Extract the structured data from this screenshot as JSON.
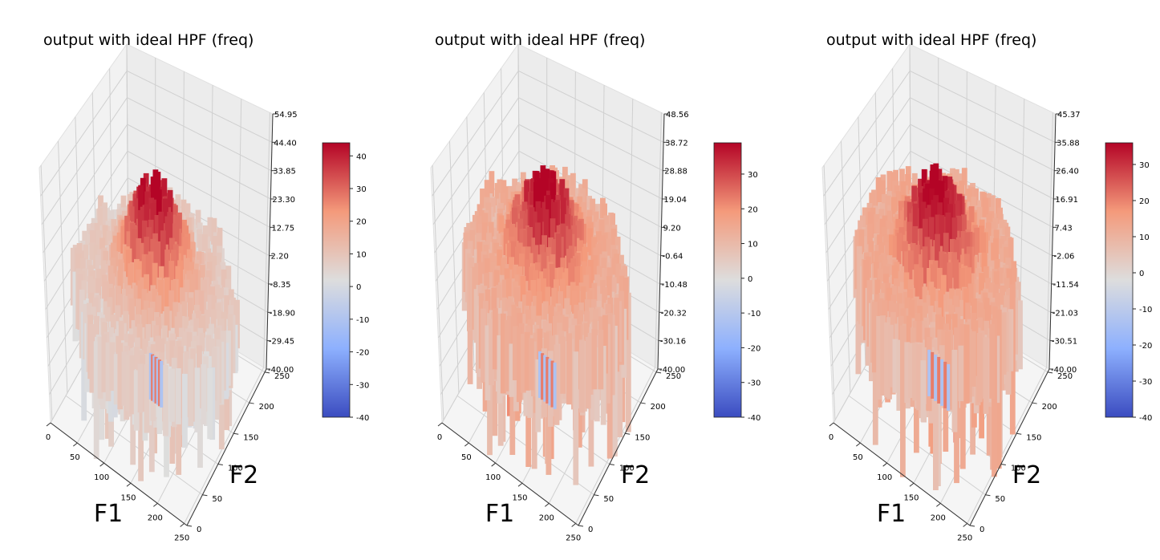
{
  "figure": {
    "panels": [
      {
        "title": "output with ideal HPF (freq)",
        "xlabel": "F1",
        "ylabel": "F2",
        "x_ticks": [
          "0",
          "50",
          "100",
          "150",
          "200",
          "250"
        ],
        "y_ticks": [
          "0",
          "50",
          "100",
          "150",
          "200",
          "250"
        ],
        "z_ticks": [
          "-40.00",
          "-29.45",
          "-18.90",
          "-8.35",
          "2.20",
          "12.75",
          "23.30",
          "33.85",
          "44.40",
          "54.95"
        ],
        "colorbar_ticks": [
          "-40",
          "-30",
          "-20",
          "-10",
          "0",
          "10",
          "20",
          "30",
          "40"
        ]
      },
      {
        "title": "output with ideal HPF (freq)",
        "xlabel": "F1",
        "ylabel": "F2",
        "x_ticks": [
          "0",
          "50",
          "100",
          "150",
          "200",
          "250"
        ],
        "y_ticks": [
          "0",
          "50",
          "100",
          "150",
          "200",
          "250"
        ],
        "z_ticks": [
          "-40.00",
          "-30.16",
          "-20.32",
          "-10.48",
          "-0.64",
          "9.20",
          "19.04",
          "28.88",
          "38.72",
          "48.56"
        ],
        "colorbar_ticks": [
          "-40",
          "-30",
          "-20",
          "-10",
          "0",
          "10",
          "20",
          "30"
        ]
      },
      {
        "title": "output with ideal HPF (freq)",
        "xlabel": "F1",
        "ylabel": "F2",
        "x_ticks": [
          "0",
          "50",
          "100",
          "150",
          "200",
          "250"
        ],
        "y_ticks": [
          "0",
          "50",
          "100",
          "150",
          "200",
          "250"
        ],
        "z_ticks": [
          "-40.00",
          "-30.51",
          "-21.03",
          "-11.54",
          "-2.06",
          "7.43",
          "16.91",
          "26.40",
          "35.88",
          "45.37"
        ],
        "colorbar_ticks": [
          "-40",
          "-30",
          "-20",
          "-10",
          "0",
          "10",
          "20",
          "30"
        ]
      }
    ]
  },
  "chart_data": [
    {
      "type": "surface3d",
      "title": "output with ideal HPF (freq)",
      "xlabel": "F1",
      "ylabel": "F2",
      "zlabel": "",
      "xlim": [
        0,
        255
      ],
      "ylim": [
        0,
        255
      ],
      "zlim": [
        -40.0,
        54.95
      ],
      "colormap": "coolwarm",
      "colorbar_range": [
        -40,
        44
      ],
      "surface": {
        "base_level": 5,
        "peak": 44,
        "peak_location": [
          128,
          128
        ],
        "notch_min": -40,
        "notch_radius": 10
      }
    },
    {
      "type": "surface3d",
      "title": "output with ideal HPF (freq)",
      "xlabel": "F1",
      "ylabel": "F2",
      "zlabel": "",
      "xlim": [
        0,
        255
      ],
      "ylim": [
        0,
        255
      ],
      "zlim": [
        -40.0,
        48.56
      ],
      "colormap": "coolwarm",
      "colorbar_range": [
        -40,
        39
      ],
      "surface": {
        "base_level": 10,
        "peak": 39,
        "peak_location": [
          128,
          128
        ],
        "notch_min": -40,
        "notch_radius": 14
      }
    },
    {
      "type": "surface3d",
      "title": "output with ideal HPF (freq)",
      "xlabel": "F1",
      "ylabel": "F2",
      "zlabel": "",
      "xlim": [
        0,
        255
      ],
      "ylim": [
        0,
        255
      ],
      "zlim": [
        -40.0,
        45.37
      ],
      "colormap": "coolwarm",
      "colorbar_range": [
        -40,
        36
      ],
      "surface": {
        "base_level": 9,
        "peak": 36,
        "peak_location": [
          128,
          128
        ],
        "notch_min": -40,
        "notch_radius": 18
      }
    }
  ]
}
